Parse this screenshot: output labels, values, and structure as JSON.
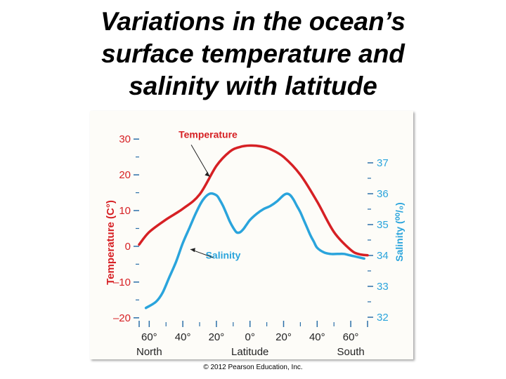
{
  "slide": {
    "title_lines": [
      "Variations in the ocean’s",
      "surface temperature and",
      "salinity with latitude"
    ],
    "credit": "© 2012 Pearson Education, Inc."
  },
  "chart_data": {
    "type": "line",
    "x_tick_labels": [
      "60°",
      "40°",
      "20°",
      "0°",
      "20°",
      "40°",
      "60°"
    ],
    "x_tick_values": [
      -60,
      -40,
      -20,
      0,
      20,
      40,
      60
    ],
    "x_end_labels": {
      "left": "North",
      "center": "Latitude",
      "right": "South"
    },
    "xlim": [
      -66,
      70
    ],
    "left_axis": {
      "label": "Temperature (C°)",
      "tick_labels": [
        "30",
        "20",
        "10",
        "0",
        "–10",
        "–20"
      ],
      "tick_values": [
        30,
        20,
        10,
        0,
        -10,
        -20
      ],
      "ylim": [
        -22,
        32
      ]
    },
    "right_axis": {
      "label": "Salinity (⁰⁰/₀)",
      "tick_labels": [
        "37",
        "36",
        "35",
        "34",
        "33",
        "32"
      ],
      "tick_values": [
        37,
        36,
        35,
        34,
        33,
        32
      ],
      "ylim": [
        31.75,
        38.0
      ]
    },
    "series": [
      {
        "name": "Temperature",
        "axis": "left",
        "color": "#d62024",
        "x": [
          -66,
          -60,
          -50,
          -40,
          -30,
          -20,
          -12,
          -6,
          0,
          6,
          12,
          20,
          30,
          40,
          50,
          60,
          65,
          70
        ],
        "y": [
          0.5,
          4,
          7.5,
          10.5,
          14.5,
          22.5,
          26.5,
          27.8,
          28.2,
          28.0,
          27.2,
          25,
          20,
          12.5,
          4,
          -1,
          -2.2,
          -2.5
        ]
      },
      {
        "name": "Salinity",
        "axis": "right",
        "color": "#2aa4dc",
        "x": [
          -62,
          -56,
          -52,
          -48,
          -44,
          -40,
          -36,
          -32,
          -28,
          -24,
          -20,
          -18,
          -16,
          -14,
          -12,
          -10,
          -8,
          -6,
          -4,
          -2,
          0,
          4,
          8,
          12,
          16,
          20,
          22,
          24,
          26,
          28,
          30,
          32,
          34,
          36,
          38,
          40,
          44,
          48,
          52,
          56,
          60,
          64,
          68
        ],
        "y": [
          32.3,
          32.5,
          32.8,
          33.3,
          33.8,
          34.4,
          34.9,
          35.4,
          35.8,
          36.0,
          35.95,
          35.8,
          35.6,
          35.35,
          35.1,
          34.9,
          34.75,
          34.75,
          34.85,
          35.0,
          35.15,
          35.35,
          35.5,
          35.6,
          35.75,
          35.95,
          36.0,
          35.95,
          35.8,
          35.6,
          35.4,
          35.15,
          34.9,
          34.65,
          34.45,
          34.25,
          34.1,
          34.05,
          34.05,
          34.05,
          34.0,
          33.95,
          33.9
        ]
      }
    ],
    "annotations": [
      {
        "text": "Temperature",
        "series": "Temperature"
      },
      {
        "text": "Salinity",
        "series": "Salinity"
      }
    ],
    "grid": false
  }
}
